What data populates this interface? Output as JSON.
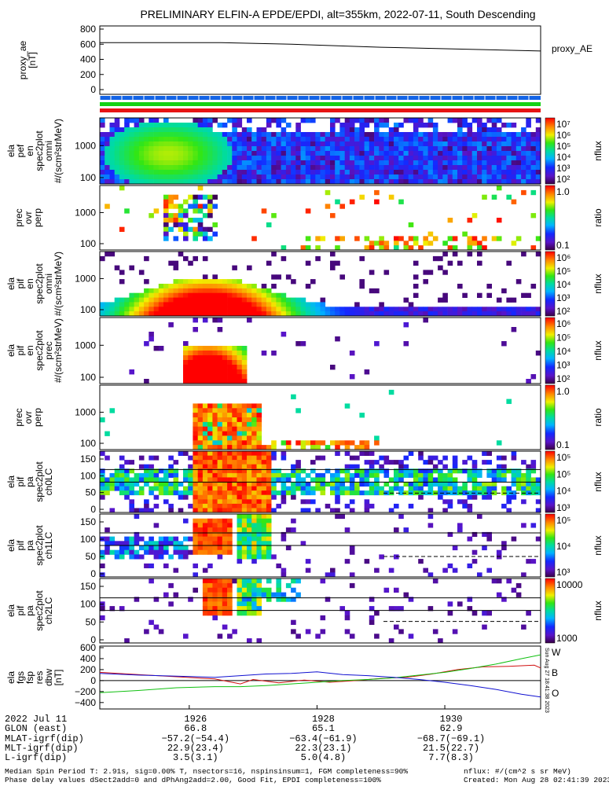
{
  "title": "PRELIMINARY ELFIN-A EPDE/EPDI, alt=355km, 2022-07-11, South Descending",
  "chart_data": [
    {
      "type": "line",
      "panel": "proxy_ae",
      "ylabel": "proxy_ae [nT]",
      "legend": "proxy_AE",
      "yticks": [
        "800",
        "600",
        "400",
        "200",
        "0"
      ],
      "ylim": [
        0,
        800
      ],
      "x": [
        1924.6,
        1926.5,
        1927.6,
        1929.0,
        1931.5
      ],
      "values": [
        620,
        620,
        600,
        560,
        510
      ]
    },
    {
      "type": "heatmap",
      "panel": "ela_pef_en_spec2plot_omni",
      "ylabel": [
        "ela",
        "pef",
        "en",
        "spec2plot",
        "omni",
        "#/(scm²strMeV)"
      ],
      "yticks": [
        "1000",
        "100"
      ],
      "colorbar_label": "nflux",
      "colorbar_ticks": [
        "10⁷",
        "10⁶",
        "10⁵",
        "10⁴",
        "10³",
        "10²"
      ]
    },
    {
      "type": "heatmap",
      "panel": "prec_ovr_perp_e",
      "ylabel": [
        "prec",
        "ovr",
        "perp"
      ],
      "yticks": [
        "1000",
        "100"
      ],
      "colorbar_label": "ratio",
      "colorbar_ticks": [
        "1.0",
        "0.1"
      ]
    },
    {
      "type": "heatmap",
      "panel": "ela_pif_en_spec2plot_omni",
      "ylabel": [
        "ela",
        "pif",
        "en",
        "spec2plot",
        "omni",
        "#/(scm²strMeV)"
      ],
      "yticks": [
        "1000",
        "100"
      ],
      "colorbar_label": "nflux",
      "colorbar_ticks": [
        "10⁶",
        "10⁵",
        "10⁴",
        "10³",
        "10²"
      ]
    },
    {
      "type": "heatmap",
      "panel": "ela_pif_en_spec2plot_prec",
      "ylabel": [
        "ela",
        "pif",
        "en",
        "spec2plot",
        "prec",
        "#/(scm²strMeV)"
      ],
      "yticks": [
        "1000",
        "100"
      ],
      "colorbar_label": "nflux",
      "colorbar_ticks": [
        "10⁶",
        "10⁵",
        "10⁴",
        "10³",
        "10²"
      ]
    },
    {
      "type": "heatmap",
      "panel": "prec_ovr_perp_i",
      "ylabel": [
        "prec",
        "ovr",
        "perp"
      ],
      "yticks": [
        "1000",
        "100"
      ],
      "colorbar_label": "ratio",
      "colorbar_ticks": [
        "1.0",
        "0.1"
      ]
    },
    {
      "type": "heatmap",
      "panel": "ela_pif_pa_spec2plot_ch0LC",
      "ylabel": [
        "ela",
        "pif",
        "pa",
        "spec2plot",
        "ch0LC"
      ],
      "yticks": [
        "150",
        "100",
        "50",
        "0"
      ],
      "colorbar_label": "nflux",
      "colorbar_ticks": [
        "10⁵",
        "10⁵",
        "10⁴",
        "10³"
      ]
    },
    {
      "type": "heatmap",
      "panel": "ela_pif_pa_spec2plot_ch1LC",
      "ylabel": [
        "ela",
        "pif",
        "pa",
        "spec2plot",
        "ch1LC"
      ],
      "yticks": [
        "150",
        "100",
        "50",
        "0"
      ],
      "colorbar_label": "nflux",
      "colorbar_ticks": [
        "10⁵",
        "10⁴",
        "10³"
      ]
    },
    {
      "type": "heatmap",
      "panel": "ela_pif_pa_spec2plot_ch2LC",
      "ylabel": [
        "ela",
        "pif",
        "pa",
        "spec2plot",
        "ch2LC"
      ],
      "yticks": [
        "150",
        "100",
        "50",
        "0"
      ],
      "colorbar_label": "nflux",
      "colorbar_ticks": [
        "10000",
        "1000"
      ]
    },
    {
      "type": "line",
      "panel": "ela_fgs_fsp_res_dbw",
      "ylabel": [
        "ela",
        "fgs",
        "fsp",
        "res",
        "dbw",
        "[nT]"
      ],
      "yticks": [
        "600",
        "400",
        "200",
        "0",
        "−200",
        "−400"
      ],
      "ylim": [
        -460,
        600
      ],
      "side_label": "Sun Aug 27 18:41:38 2023",
      "series": [
        {
          "name": "W",
          "color": "#d01010",
          "x": [
            1924.6,
            1925.2,
            1925.8,
            1926.4,
            1926.8,
            1927.0,
            1927.4,
            1927.8,
            1928.2,
            1928.6,
            1929.0,
            1929.4,
            1929.8,
            1930.2,
            1930.6,
            1931.0,
            1931.4,
            1931.5
          ],
          "values": [
            150,
            110,
            70,
            30,
            -60,
            20,
            -40,
            10,
            -30,
            0,
            40,
            60,
            120,
            200,
            250,
            260,
            280,
            230
          ]
        },
        {
          "name": "B",
          "color": "#10c010",
          "x": [
            1924.6,
            1925.2,
            1925.8,
            1926.4,
            1926.8,
            1927.2,
            1927.6,
            1928.0,
            1928.4,
            1928.8,
            1929.2,
            1929.6,
            1930.0,
            1930.4,
            1930.8,
            1931.2,
            1931.5
          ],
          "values": [
            -220,
            -180,
            -130,
            -110,
            -110,
            -90,
            -60,
            -30,
            0,
            20,
            50,
            100,
            150,
            220,
            300,
            400,
            470
          ]
        },
        {
          "name": "O",
          "color": "#1010d0",
          "x": [
            1924.6,
            1925.2,
            1925.8,
            1926.4,
            1926.8,
            1927.2,
            1927.6,
            1928.0,
            1928.4,
            1928.8,
            1929.2,
            1929.6,
            1930.0,
            1930.4,
            1930.8,
            1931.2,
            1931.5
          ],
          "values": [
            130,
            100,
            80,
            60,
            90,
            120,
            130,
            160,
            110,
            90,
            60,
            20,
            -30,
            -90,
            -160,
            -250,
            -300
          ]
        }
      ]
    }
  ],
  "xaxis": {
    "row_labels": [
      "2022 Jul 11",
      "GLON (east)",
      "MLAT-igrf(dip)",
      "MLT-igrf(dip)",
      "L-igrf(dip)"
    ],
    "ticks": [
      {
        "x": 1926,
        "values": [
          "1926",
          "66.8",
          "−57.2(−54.4)",
          "22.9(23.4)",
          "3.5(3.1)"
        ]
      },
      {
        "x": 1928,
        "values": [
          "1928",
          "65.1",
          "−63.4(−61.9)",
          "22.3(23.1)",
          "5.0(4.8)"
        ]
      },
      {
        "x": 1930,
        "values": [
          "1930",
          "62.9",
          "−68.7(−69.1)",
          "21.5(22.7)",
          "7.7(8.3)"
        ]
      }
    ]
  },
  "footer": {
    "left_line1": "Median Spin Period T: 2.91s, sig=0.00% T, nsectors=16, nspinsinsum=1, FGM completeness=90%",
    "left_line2": "Phase delay values dSect2add=0 and dPhAng2add=2.00, Good Fit, EPDI completeness=100%",
    "right_line1": "nflux: #/(cm^2 s sr MeV)",
    "right_line2": "Created: Mon Aug 28 02:41:39 2023"
  },
  "colors": {
    "blue": "#1464e6",
    "green": "#14d214",
    "red": "#e61414",
    "black": "#000000"
  }
}
